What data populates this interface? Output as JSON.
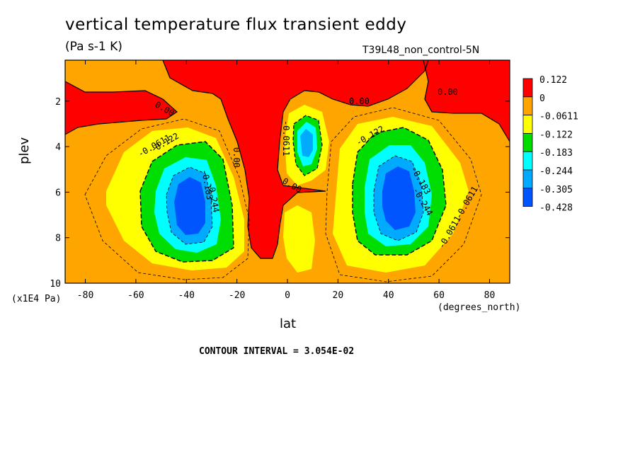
{
  "chart_data": {
    "type": "heatmap",
    "title": "vertical temperature flux transient eddy",
    "units": "(Pa s-1 K)",
    "dataset": "T39L48_non_control-5N",
    "xlabel": "lat",
    "x_unit": "(degrees_north)",
    "ylabel": "plev",
    "y_unit": "(x1E4 Pa)",
    "xlim": [
      -88,
      88
    ],
    "ylim": [
      10,
      0.2
    ],
    "x_ticks": [
      "-80",
      "-60",
      "-40",
      "-20",
      "0",
      "20",
      "40",
      "60",
      "80"
    ],
    "y_ticks": [
      "2",
      "4",
      "6",
      "8",
      "10"
    ],
    "contour_interval_text": "CONTOUR INTERVAL = 3.054E-02",
    "colorbar": {
      "labels": [
        "0.122",
        "0",
        "-0.0611",
        "-0.122",
        "-0.183",
        "-0.244",
        "-0.305",
        "-0.428"
      ],
      "colors": [
        "#ff0000",
        "#ffa500",
        "#ffff00",
        "#00dd00",
        "#00ffff",
        "#00aaff",
        "#0055ff"
      ]
    },
    "contour_labels": [
      "0.00",
      "0.00",
      "0.00",
      "0.00",
      "0.00",
      "-0.0611",
      "-0.122",
      "-0.183",
      "-0.244",
      "-0.0611",
      "-0.122",
      "-0.183",
      "-0.244",
      "-0.0611",
      "-0.0611"
    ],
    "features": [
      {
        "name": "southern-minimum",
        "lat": -38,
        "plev": 6.3,
        "value": -0.428
      },
      {
        "name": "northern-minimum",
        "lat": 45,
        "plev": 6.2,
        "value": -0.428
      },
      {
        "name": "equatorial-minimum",
        "lat": 6,
        "plev": 3.7,
        "value": -0.244
      },
      {
        "name": "upper-positive-band",
        "lat": 0,
        "plev": 1.0,
        "value": 0.122
      }
    ]
  }
}
